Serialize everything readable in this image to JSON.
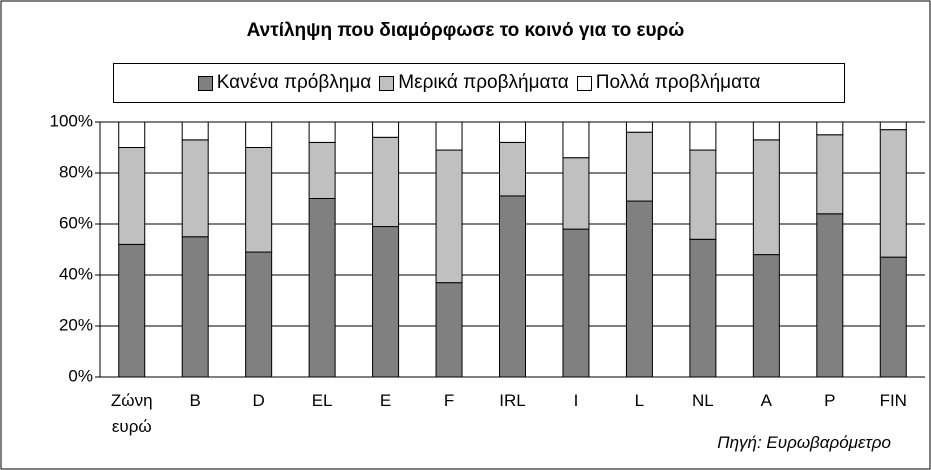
{
  "chart_data": {
    "type": "stacked_bar",
    "title": "Αντίληψη που διαμόρφωσε το κοινό για το ευρώ",
    "categories": [
      "Ζώνη ευρώ",
      "B",
      "D",
      "EL",
      "E",
      "F",
      "IRL",
      "I",
      "L",
      "NL",
      "A",
      "P",
      "FIN"
    ],
    "series": [
      {
        "name": "Κανένα πρόβλημα",
        "color": "#808080",
        "values": [
          52,
          55,
          49,
          70,
          59,
          37,
          71,
          58,
          69,
          54,
          48,
          64,
          47
        ]
      },
      {
        "name": "Μερικά προβλήματα",
        "color": "#c0c0c0",
        "values": [
          38,
          38,
          41,
          22,
          35,
          52,
          21,
          28,
          27,
          35,
          45,
          31,
          50
        ]
      },
      {
        "name": "Πολλά προβλήματα",
        "color": "#ffffff",
        "values": [
          10,
          7,
          10,
          8,
          6,
          11,
          8,
          14,
          4,
          11,
          7,
          5,
          3
        ]
      }
    ],
    "ylim": [
      0,
      100
    ],
    "yticks": [
      {
        "value": 0,
        "label": "0%"
      },
      {
        "value": 20,
        "label": "20%"
      },
      {
        "value": 40,
        "label": "40%"
      },
      {
        "value": 60,
        "label": "60%"
      },
      {
        "value": 80,
        "label": "80%"
      },
      {
        "value": 100,
        "label": "100%"
      }
    ],
    "grid": true,
    "legend": "top",
    "annotation": "Πηγή: Ευρωβαρόμετρο"
  }
}
